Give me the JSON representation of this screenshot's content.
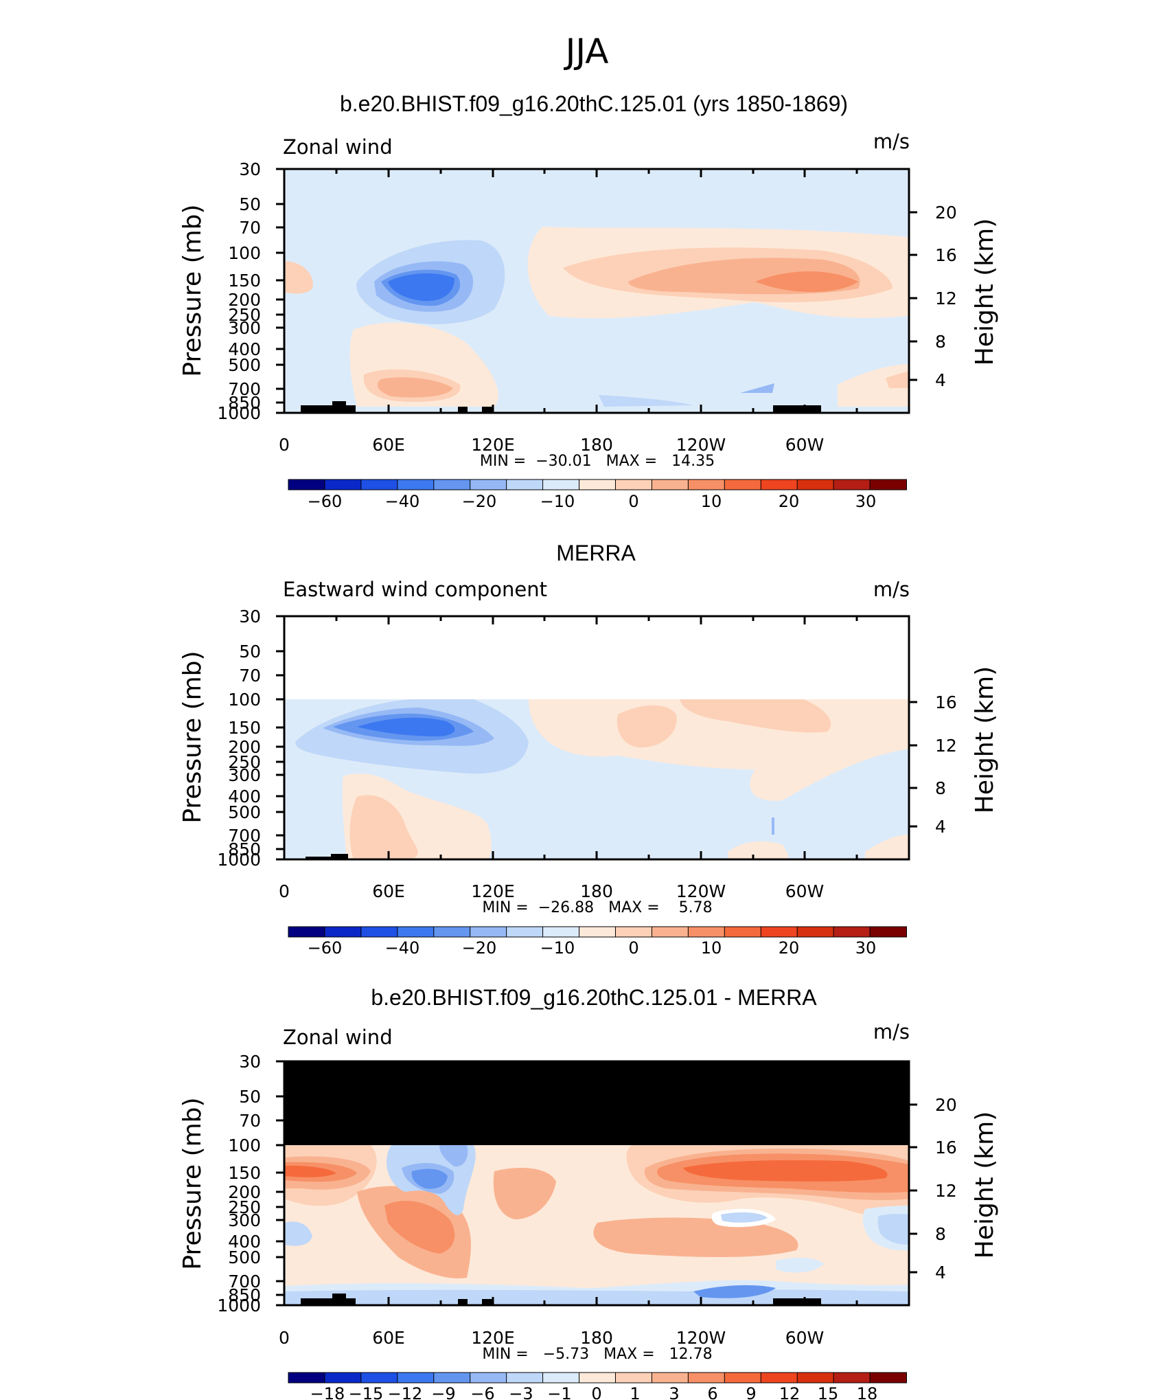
{
  "title": "JJA",
  "colors": {
    "full": [
      "#000080",
      "#0a28c8",
      "#1e50e6",
      "#3c78f0",
      "#6496f0",
      "#96b9f5",
      "#bfd7f8",
      "#dcebfa",
      "#fde9d9",
      "#fcd1b7",
      "#f9b290",
      "#f79066",
      "#f56a3c",
      "#ee4420",
      "#d7300e",
      "#b41e14",
      "#7a0000"
    ],
    "land": "#000000",
    "cfill": [
      "#fde9d9",
      "#fcd1b7",
      "#f9b290",
      "#f79066",
      "#f56a3c"
    ],
    "bfill": [
      "#dcebfa",
      "#bfd7f8",
      "#96b9f5",
      "#6496f0",
      "#3c78f0"
    ]
  },
  "chart_data": [
    {
      "type": "contour",
      "panel_title": "b.e20.BHIST.f09_g16.20thC.125.01 (yrs 1850-1869)",
      "left_label": "Zonal wind",
      "right_label": "m/s",
      "ylabel": "Pressure (mb)",
      "y2label": "Height (km)",
      "xticks": [
        "0",
        "60E",
        "120E",
        "180",
        "120W",
        "60W"
      ],
      "yticks": [
        "30",
        "50",
        "70",
        "100",
        "150",
        "200",
        "250",
        "300",
        "400",
        "500",
        "700",
        "850",
        "1000"
      ],
      "y2ticks": [
        "20",
        "16",
        "12",
        "8",
        "4"
      ],
      "stats": "MIN =  −30.01   MAX =   14.35",
      "min": -30.01,
      "max": 14.35,
      "colorbar": [
        "−60",
        "−40",
        "−20",
        "−10",
        "0",
        "10",
        "20",
        "30"
      ],
      "ylim": [
        1000,
        30
      ],
      "xlim": [
        0,
        360
      ]
    },
    {
      "type": "contour",
      "panel_title": "MERRA",
      "left_label": "Eastward wind component",
      "right_label": "m/s",
      "ylabel": "Pressure (mb)",
      "y2label": "Height (km)",
      "xticks": [
        "0",
        "60E",
        "120E",
        "180",
        "120W",
        "60W"
      ],
      "yticks": [
        "30",
        "50",
        "70",
        "100",
        "150",
        "200",
        "250",
        "300",
        "400",
        "500",
        "700",
        "850",
        "1000"
      ],
      "y2ticks": [
        "16",
        "12",
        "8",
        "4"
      ],
      "stats": "MIN =  −26.88   MAX =    5.78",
      "min": -26.88,
      "max": 5.78,
      "colorbar": [
        "−60",
        "−40",
        "−20",
        "−10",
        "0",
        "10",
        "20",
        "30"
      ],
      "ylim": [
        1000,
        30
      ],
      "xlim": [
        0,
        360
      ]
    },
    {
      "type": "contour",
      "panel_title": "b.e20.BHIST.f09_g16.20thC.125.01 - MERRA",
      "left_label": "Zonal wind",
      "right_label": "m/s",
      "ylabel": "Pressure (mb)",
      "y2label": "Height (km)",
      "xticks": [
        "0",
        "60E",
        "120E",
        "180",
        "120W",
        "60W"
      ],
      "yticks": [
        "30",
        "50",
        "70",
        "100",
        "150",
        "200",
        "250",
        "300",
        "400",
        "500",
        "700",
        "850",
        "1000"
      ],
      "y2ticks": [
        "20",
        "16",
        "12",
        "8",
        "4"
      ],
      "stats": "MIN =   −5.73   MAX =   12.78",
      "min": -5.73,
      "max": 12.78,
      "colorbar": [
        "−18",
        "−15",
        "−12",
        "−9",
        "−6",
        "−3",
        "−1",
        "0",
        "1",
        "3",
        "6",
        "9",
        "12",
        "15",
        "18"
      ],
      "ylim": [
        1000,
        30
      ],
      "xlim": [
        0,
        360
      ]
    }
  ]
}
